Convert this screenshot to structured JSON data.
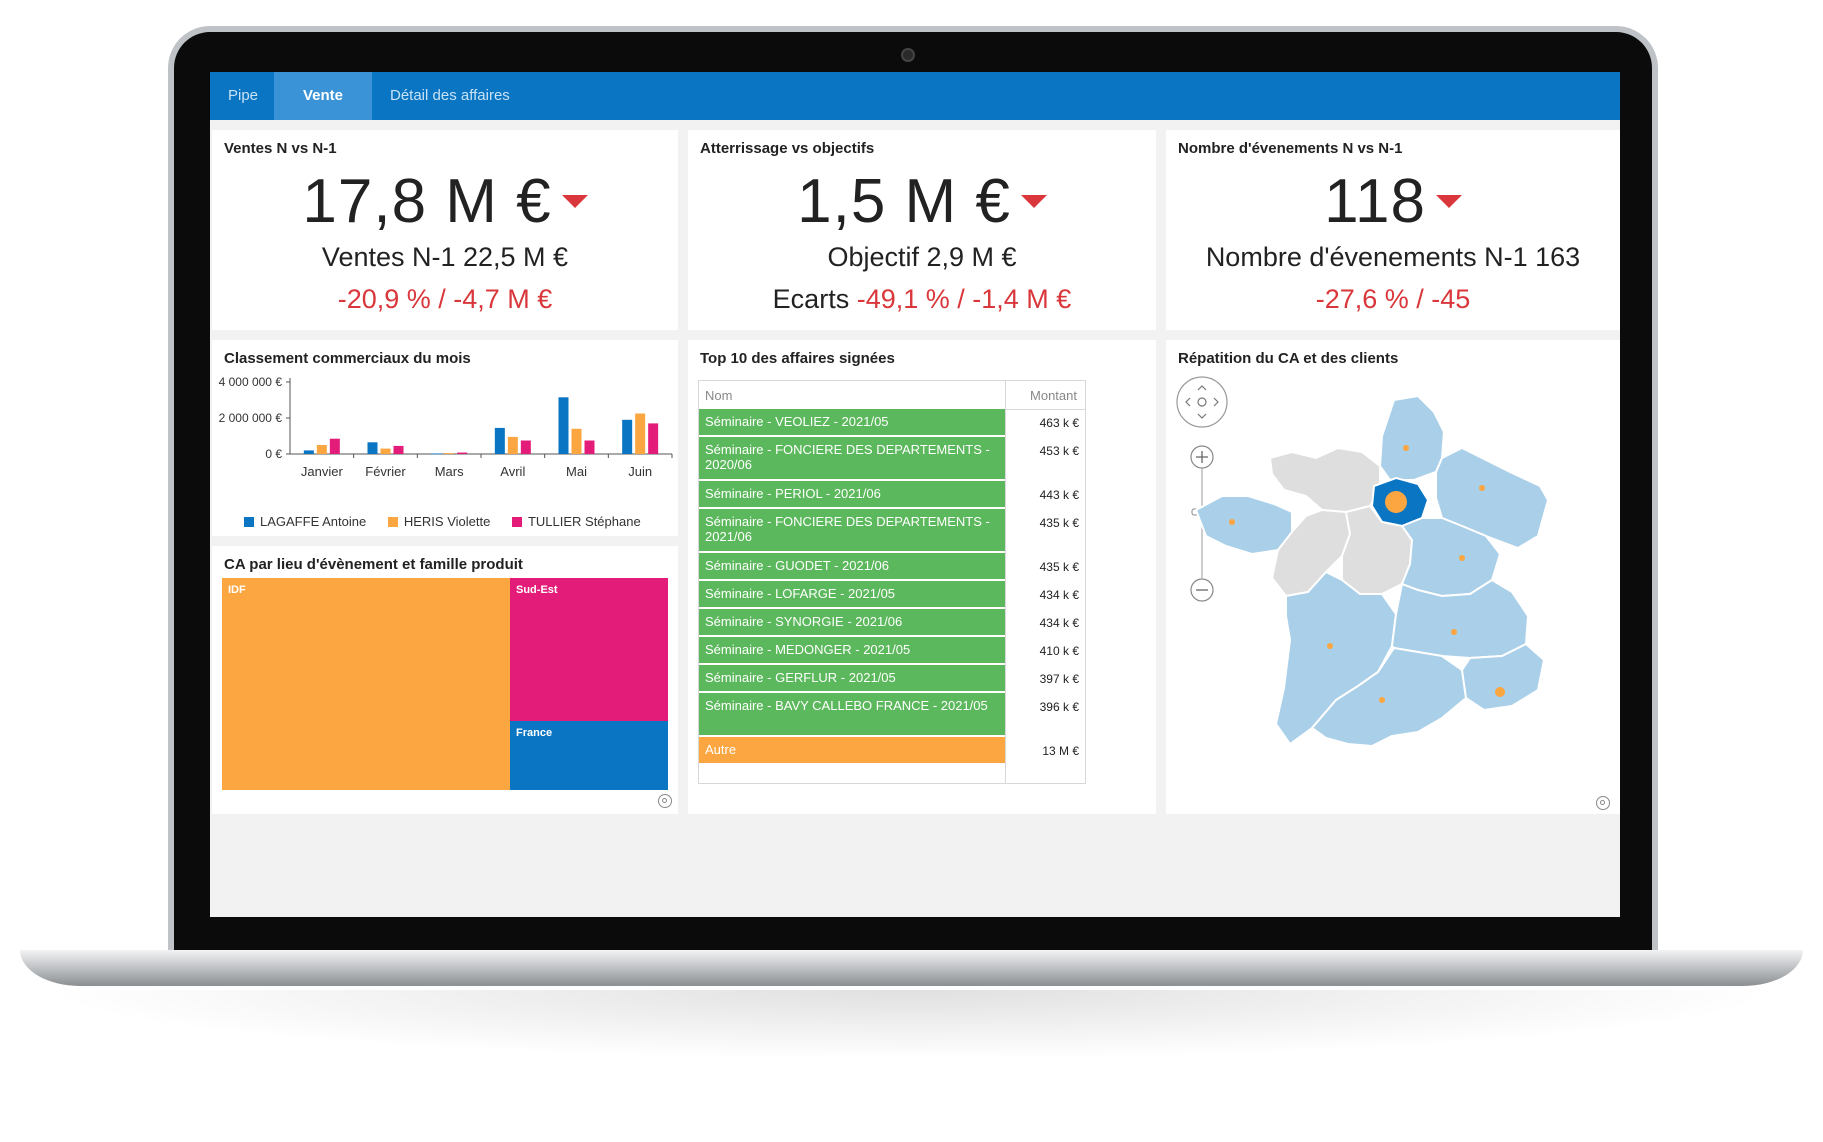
{
  "tabs": [
    {
      "label": "Pipe"
    },
    {
      "label": "Vente"
    },
    {
      "label": "Détail des affaires"
    }
  ],
  "kpi_sales": {
    "title": "Ventes N vs N-1",
    "value": "17,8 M €",
    "previous": "Ventes N-1 22,5 M €",
    "delta": "-20,9 % / -4,7 M €",
    "trend": "down"
  },
  "kpi_landing": {
    "title": "Atterrissage vs objectifs",
    "value": "1,5 M €",
    "objective": "Objectif 2,9 M €",
    "gap_label": "Ecarts",
    "gap_value": "-49,1 % / -1,4 M €",
    "trend": "down"
  },
  "kpi_events": {
    "title": "Nombre d'évenements N vs N-1",
    "value": "118",
    "previous": "Nombre d'évenements N-1 163",
    "delta": "-27,6 % / -45",
    "trend": "down"
  },
  "ranking_title": "Classement commerciaux du mois",
  "treemap_title": "CA par lieu d'évènement et famille produit",
  "top10_title": "Top 10 des affaires signées",
  "map_title": "Répatition du CA et des clients",
  "chart_data": [
    {
      "type": "bar",
      "categories": [
        "Janvier",
        "Février",
        "Mars",
        "Avril",
        "Mai",
        "Juin"
      ],
      "series": [
        {
          "name": "LAGAFFE Antoine",
          "color": "#0a75c2",
          "values": [
            200000,
            650000,
            30000,
            1450000,
            3150000,
            1900000
          ]
        },
        {
          "name": "HERIS Violette",
          "color": "#fba640",
          "values": [
            500000,
            300000,
            50000,
            950000,
            1400000,
            2250000
          ]
        },
        {
          "name": "TULLIER Stéphane",
          "color": "#e31c79",
          "values": [
            850000,
            450000,
            80000,
            750000,
            750000,
            1700000
          ]
        }
      ],
      "y_ticks": [
        "4 000 000 €",
        "2 000 000 €",
        "0 €"
      ],
      "ylim": [
        0,
        4000000
      ],
      "legend_position": "bottom"
    },
    {
      "type": "treemap",
      "cells": [
        {
          "label": "IDF",
          "color": "#fba640",
          "share": 0.645
        },
        {
          "label": "Sud-Est",
          "color": "#e31c79",
          "share": 0.235
        },
        {
          "label": "France",
          "color": "#0a75c2",
          "share": 0.12
        }
      ]
    }
  ],
  "top10": {
    "headers": {
      "name": "Nom",
      "amount": "Montant"
    },
    "rows": [
      {
        "name": "Séminaire - VEOLIEZ - 2021/05",
        "amount": "463 k €"
      },
      {
        "name": "Séminaire - FONCIERE DES DEPARTEMENTS - 2020/06",
        "amount": "453 k €"
      },
      {
        "name": "Séminaire - PERIOL - 2021/06",
        "amount": "443 k €"
      },
      {
        "name": "Séminaire - FONCIERE DES DEPARTEMENTS - 2021/06",
        "amount": "435 k €"
      },
      {
        "name": "Séminaire - GUODET - 2021/06",
        "amount": "435 k €"
      },
      {
        "name": "Séminaire - LOFARGE - 2021/05",
        "amount": "434 k €"
      },
      {
        "name": "Séminaire - SYNORGIE - 2021/06",
        "amount": "434 k €"
      },
      {
        "name": "Séminaire - MEDONGER - 2021/05",
        "amount": "410 k €"
      },
      {
        "name": "Séminaire - GERFLUR - 2021/05",
        "amount": "397 k €"
      },
      {
        "name": "Séminaire - BAVY CALLEBO FRANCE - 2021/05",
        "amount": "396 k €"
      },
      {
        "name": "Autre",
        "amount": "13 M €",
        "other": true
      }
    ]
  },
  "colors": {
    "tab_bar": "#0a75c2",
    "negative": "#d9373b",
    "row_green": "#5cb85c",
    "row_orange": "#fba640",
    "map_region": "#a9cfe9",
    "map_region_grey": "#dedede",
    "map_highlight": "#0a75c2",
    "map_marker": "#fba640"
  }
}
